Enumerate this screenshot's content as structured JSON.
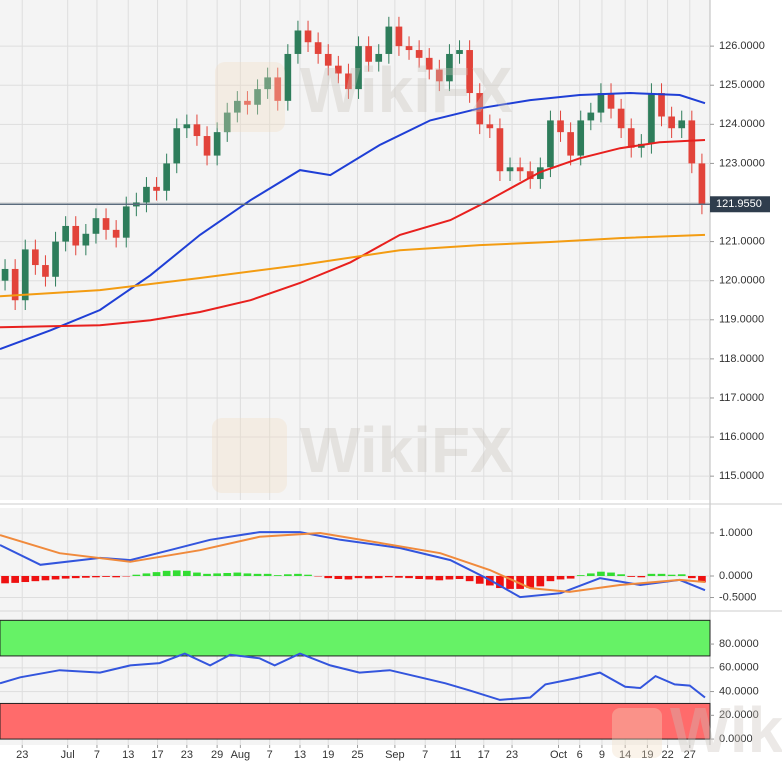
{
  "watermark": "WikiFX",
  "chart_data": [
    {
      "type": "candlestick",
      "xlim": [
        -0.5,
        69.8
      ],
      "ylim": [
        114.39,
        127.18
      ],
      "yticks": [
        {
          "value": 126,
          "label": "126.0000"
        },
        {
          "value": 125,
          "label": "125.0000"
        },
        {
          "value": 124,
          "label": "124.0000"
        },
        {
          "value": 123,
          "label": "123.0000"
        },
        {
          "value": 122,
          "label": "122.0000"
        },
        {
          "value": 121,
          "label": "121.0000"
        },
        {
          "value": 120,
          "label": "120.0000"
        },
        {
          "value": 119,
          "label": "119.0000"
        },
        {
          "value": 118,
          "label": "118.0000"
        },
        {
          "value": 117,
          "label": "117.0000"
        },
        {
          "value": 116,
          "label": "116.0000"
        },
        {
          "value": 115,
          "label": "115.0000"
        }
      ],
      "grid": true,
      "up_color": "#2e7d5b",
      "down_color": "#e2433a",
      "open": [
        120.0,
        120.3,
        119.5,
        120.8,
        120.4,
        120.1,
        121.0,
        121.4,
        120.9,
        121.2,
        121.6,
        121.3,
        121.1,
        121.9,
        122.0,
        122.4,
        122.3,
        123.0,
        123.9,
        124.0,
        123.7,
        123.2,
        123.8,
        124.3,
        124.6,
        124.5,
        124.9,
        125.2,
        124.6,
        125.8,
        126.4,
        126.1,
        125.8,
        125.5,
        125.3,
        124.9,
        126.0,
        125.6,
        125.8,
        126.5,
        126.0,
        125.9,
        125.7,
        125.4,
        125.1,
        125.8,
        125.9,
        124.8,
        124.0,
        123.9,
        122.8,
        122.9,
        122.8,
        122.6,
        122.9,
        124.1,
        123.8,
        123.2,
        124.1,
        124.3,
        124.8,
        124.4,
        123.9,
        123.4,
        123.5,
        124.8,
        124.2,
        123.9,
        124.1,
        123.0
      ],
      "high": [
        120.55,
        120.55,
        121.05,
        121.05,
        120.65,
        121.25,
        121.65,
        121.65,
        121.45,
        121.85,
        121.85,
        121.55,
        122.15,
        122.25,
        122.65,
        122.65,
        123.25,
        124.15,
        124.25,
        124.25,
        123.95,
        124.05,
        124.55,
        124.85,
        124.85,
        125.15,
        125.45,
        125.45,
        126.05,
        126.65,
        126.65,
        126.35,
        126.05,
        125.75,
        125.55,
        126.25,
        126.25,
        126.05,
        126.75,
        126.75,
        126.25,
        126.15,
        125.95,
        125.65,
        126.05,
        126.15,
        126.15,
        125.05,
        124.25,
        124.15,
        123.15,
        123.15,
        123.05,
        123.15,
        124.35,
        124.35,
        124.05,
        124.35,
        124.55,
        125.05,
        125.05,
        124.65,
        124.15,
        123.75,
        125.05,
        125.05,
        124.45,
        124.35,
        124.35,
        123.25
      ],
      "low": [
        119.75,
        119.25,
        119.25,
        120.15,
        119.85,
        119.85,
        120.75,
        120.65,
        120.65,
        120.95,
        121.05,
        120.85,
        120.85,
        121.65,
        121.75,
        122.05,
        122.05,
        122.75,
        123.65,
        123.45,
        122.95,
        122.95,
        123.55,
        124.05,
        124.25,
        124.25,
        124.65,
        124.35,
        124.35,
        125.55,
        125.85,
        125.55,
        125.25,
        125.05,
        124.65,
        124.65,
        125.35,
        125.35,
        125.55,
        125.75,
        125.65,
        125.45,
        125.15,
        124.85,
        124.85,
        125.55,
        124.55,
        123.75,
        123.65,
        122.55,
        122.55,
        122.55,
        122.35,
        122.35,
        122.65,
        123.55,
        122.95,
        122.95,
        123.85,
        124.05,
        124.15,
        123.65,
        123.15,
        123.15,
        123.25,
        123.95,
        123.65,
        123.65,
        122.75,
        121.7
      ],
      "close": [
        120.3,
        119.5,
        120.8,
        120.4,
        120.1,
        121.0,
        121.4,
        120.9,
        121.2,
        121.6,
        121.3,
        121.1,
        121.9,
        122.0,
        122.4,
        122.3,
        123.0,
        123.9,
        124.0,
        123.7,
        123.2,
        123.8,
        124.3,
        124.6,
        124.5,
        124.9,
        125.2,
        124.6,
        125.8,
        126.4,
        126.1,
        125.8,
        125.5,
        125.3,
        124.9,
        126.0,
        125.6,
        125.8,
        126.5,
        126.0,
        125.9,
        125.7,
        125.4,
        125.1,
        125.8,
        125.9,
        124.8,
        124.0,
        123.9,
        122.8,
        122.9,
        122.8,
        122.6,
        122.9,
        124.1,
        123.8,
        123.2,
        124.1,
        124.3,
        124.8,
        124.4,
        123.9,
        123.4,
        123.5,
        124.8,
        124.2,
        123.9,
        124.1,
        123.0,
        121.95
      ],
      "series": [
        {
          "color": "#1f3fd6",
          "x": [
            -0.5,
            4.5,
            9.4,
            14.4,
            19.3,
            24.3,
            29.2,
            32.2,
            37.1,
            42.1,
            47.0,
            52.0,
            56.9,
            61.9,
            66.8,
            69.3
          ],
          "values": [
            118.25,
            118.73,
            119.25,
            120.14,
            121.17,
            122.06,
            122.83,
            122.7,
            123.47,
            124.1,
            124.41,
            124.62,
            124.75,
            124.8,
            124.75,
            124.54
          ]
        },
        {
          "color": "#e8201e",
          "x": [
            -0.5,
            9.4,
            14.4,
            19.3,
            24.3,
            29.2,
            34.2,
            39.1,
            44.1,
            47.0,
            53.0,
            56.9,
            60.9,
            64.8,
            69.3
          ],
          "values": [
            118.81,
            118.86,
            118.99,
            119.2,
            119.5,
            119.94,
            120.47,
            121.17,
            121.55,
            121.93,
            122.78,
            123.13,
            123.39,
            123.54,
            123.6
          ]
        },
        {
          "color": "#f39c12",
          "x": [
            -0.5,
            9.4,
            19.3,
            29.2,
            39.1,
            47.0,
            54.0,
            60.9,
            69.3
          ],
          "values": [
            119.6,
            119.76,
            120.07,
            120.4,
            120.78,
            120.91,
            120.99,
            121.09,
            121.17
          ]
        }
      ],
      "last_price": 121.955,
      "last_price_label": "121.9550"
    },
    {
      "type": "macd",
      "xlim": [
        -0.5,
        69.8
      ],
      "ylim": [
        -0.79,
        1.58
      ],
      "yticks": [
        {
          "value": 1,
          "label": "1.0000"
        },
        {
          "value": 0,
          "label": "0.0000"
        },
        {
          "value": -0.5,
          "label": "-0.5000"
        }
      ],
      "grid": true,
      "up_color": "#33dd33",
      "down_color": "#ee1111",
      "histogram": [
        -0.17,
        -0.16,
        -0.14,
        -0.12,
        -0.1,
        -0.08,
        -0.06,
        -0.05,
        -0.04,
        -0.03,
        -0.02,
        -0.03,
        -0.01,
        0.03,
        0.06,
        0.09,
        0.12,
        0.13,
        0.12,
        0.08,
        0.05,
        0.06,
        0.07,
        0.08,
        0.06,
        0.05,
        0.05,
        0.02,
        0.04,
        0.05,
        0.03,
        -0.01,
        -0.05,
        -0.07,
        -0.08,
        -0.05,
        -0.06,
        -0.05,
        -0.03,
        -0.04,
        -0.05,
        -0.07,
        -0.08,
        -0.1,
        -0.08,
        -0.07,
        -0.12,
        -0.18,
        -0.22,
        -0.28,
        -0.3,
        -0.3,
        -0.28,
        -0.24,
        -0.12,
        -0.08,
        -0.06,
        0.02,
        0.06,
        0.1,
        0.08,
        0.04,
        -0.02,
        -0.03,
        0.05,
        0.05,
        0.03,
        0.04,
        -0.05,
        -0.15
      ],
      "series": [
        {
          "color": "#3355dd",
          "x": [
            -0.5,
            3.5,
            9.4,
            12.4,
            16.3,
            20.3,
            25.2,
            29.2,
            33.2,
            39.1,
            44.1,
            48.0,
            51.0,
            55.0,
            58.9,
            62.9,
            66.8,
            69.3
          ],
          "values": [
            0.72,
            0.26,
            0.42,
            0.37,
            0.6,
            0.84,
            1.02,
            1.02,
            0.84,
            0.65,
            0.37,
            -0.09,
            -0.49,
            -0.4,
            -0.05,
            -0.21,
            -0.09,
            -0.33
          ]
        },
        {
          "color": "#f08a3c",
          "x": [
            -0.5,
            5.4,
            12.4,
            19.3,
            25.2,
            31.2,
            37.1,
            43.1,
            48.0,
            52.0,
            55.9,
            60.9,
            66.8,
            69.3
          ],
          "values": [
            0.95,
            0.53,
            0.33,
            0.6,
            0.91,
            1.0,
            0.77,
            0.53,
            0.14,
            -0.28,
            -0.37,
            -0.21,
            -0.09,
            -0.14
          ]
        }
      ]
    },
    {
      "type": "line",
      "xlim": [
        -0.5,
        69.8
      ],
      "ylim": [
        -5,
        107
      ],
      "yticks": [
        {
          "value": 80,
          "label": "80.0000"
        },
        {
          "value": 60,
          "label": "60.0000"
        },
        {
          "value": 40,
          "label": "40.0000"
        },
        {
          "value": 20,
          "label": "20.0000"
        },
        {
          "value": 0,
          "label": "0.0000"
        }
      ],
      "grid": true,
      "zones": [
        {
          "from": 70,
          "to": 100,
          "color": "#66f266"
        },
        {
          "from": 0,
          "to": 30,
          "color": "#ff6b6b"
        }
      ],
      "series": [
        {
          "color": "#3355dd",
          "x": [
            -0.5,
            1.5,
            5.4,
            9.4,
            12.4,
            15.3,
            17.8,
            20.3,
            22.3,
            25.2,
            26.7,
            29.2,
            32.2,
            35.1,
            38.1,
            41.1,
            43.6,
            46.0,
            49.0,
            52.0,
            53.5,
            56.4,
            58.9,
            61.4,
            62.9,
            64.4,
            66.3,
            67.8,
            69.3
          ],
          "values": [
            47,
            52,
            58,
            56,
            62,
            64,
            72,
            62,
            71,
            68,
            62,
            72,
            62,
            56,
            58,
            52,
            47,
            41,
            33,
            35,
            46,
            51,
            56,
            44,
            43,
            53,
            46,
            45,
            35
          ]
        }
      ],
      "xticks": [
        {
          "value": 1.7,
          "label": "23"
        },
        {
          "value": 6.2,
          "label": "Jul"
        },
        {
          "value": 9.1,
          "label": "7"
        },
        {
          "value": 12.2,
          "label": "13"
        },
        {
          "value": 15.1,
          "label": "17"
        },
        {
          "value": 18,
          "label": "23"
        },
        {
          "value": 21,
          "label": "29"
        },
        {
          "value": 23.3,
          "label": "Aug"
        },
        {
          "value": 26.2,
          "label": "7"
        },
        {
          "value": 29.2,
          "label": "13"
        },
        {
          "value": 32,
          "label": "19"
        },
        {
          "value": 34.9,
          "label": "25"
        },
        {
          "value": 38.6,
          "label": "Sep"
        },
        {
          "value": 41.6,
          "label": "7"
        },
        {
          "value": 44.6,
          "label": "11"
        },
        {
          "value": 47.4,
          "label": "17"
        },
        {
          "value": 50.2,
          "label": "23"
        },
        {
          "value": 54.8,
          "label": "Oct"
        },
        {
          "value": 56.9,
          "label": "6"
        },
        {
          "value": 59.1,
          "label": "9"
        },
        {
          "value": 61.4,
          "label": "14"
        },
        {
          "value": 63.6,
          "label": "19"
        },
        {
          "value": 65.6,
          "label": "22"
        },
        {
          "value": 67.8,
          "label": "27"
        }
      ]
    }
  ]
}
